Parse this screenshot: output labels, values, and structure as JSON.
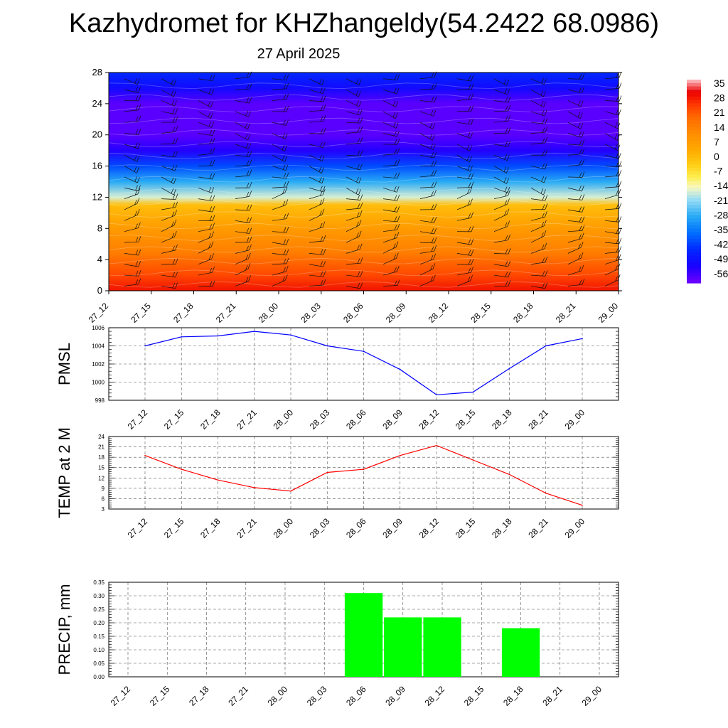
{
  "header": {
    "title": "Kazhydromet for KHZhangeldy(54.2422 68.0986)",
    "subtitle": "27 April 2025"
  },
  "colors": {
    "pmsl_line": "#0000ff",
    "temp_line": "#ff0000",
    "precip_bar": "#00ff00",
    "grid": "#555555"
  },
  "chart_data": [
    {
      "id": "cross-section",
      "type": "heatmap",
      "x_categories": [
        "27_12",
        "27_15",
        "27_18",
        "27_21",
        "28_00",
        "28_03",
        "28_06",
        "28_09",
        "28_12",
        "28_15",
        "28_18",
        "28_21",
        "29_00"
      ],
      "yticks": [
        "0",
        "4",
        "8",
        "12",
        "16",
        "20",
        "24",
        "28"
      ],
      "ylim": [
        0,
        28
      ],
      "colorbar_labels": [
        "35",
        "28",
        "21",
        "14",
        "7",
        "0",
        "-7",
        "-14",
        "-21",
        "-28",
        "-35",
        "-42",
        "-49",
        "-56"
      ],
      "colorbar_range": [
        -60,
        38
      ],
      "bands": [
        {
          "y": 0,
          "value": 30
        },
        {
          "y": 2,
          "value": 24
        },
        {
          "y": 5,
          "value": 15
        },
        {
          "y": 8,
          "value": 8
        },
        {
          "y": 11,
          "value": 0
        },
        {
          "y": 12,
          "value": -16
        },
        {
          "y": 14,
          "value": -28
        },
        {
          "y": 16,
          "value": -40
        },
        {
          "y": 18,
          "value": -53
        },
        {
          "y": 20,
          "value": -58
        },
        {
          "y": 24,
          "value": -58
        },
        {
          "y": 26,
          "value": -50
        },
        {
          "y": 28,
          "value": -44
        }
      ],
      "grid": false
    },
    {
      "id": "pmsl",
      "type": "line",
      "ylabel": "PMSL",
      "categories": [
        "27_12",
        "27_15",
        "27_18",
        "27_21",
        "28_00",
        "28_03",
        "28_06",
        "28_09",
        "28_12",
        "28_15",
        "28_18",
        "28_21",
        "29_00"
      ],
      "values": [
        1004.0,
        1005.0,
        1005.1,
        1005.6,
        1005.2,
        1004.0,
        1003.4,
        1001.4,
        998.6,
        998.9,
        1001.5,
        1004.0,
        1004.8
      ],
      "ylim": [
        998,
        1006
      ],
      "yticks": [
        "998",
        "1000",
        "1002",
        "1004",
        "1006"
      ],
      "grid": true
    },
    {
      "id": "temp",
      "type": "line",
      "ylabel": "TEMP at 2 M",
      "categories": [
        "27_12",
        "27_15",
        "27_18",
        "27_21",
        "28_00",
        "28_03",
        "28_06",
        "28_09",
        "28_12",
        "28_15",
        "28_18",
        "28_21",
        "29_00"
      ],
      "values": [
        18.5,
        14.5,
        11.4,
        9.2,
        8.2,
        13.6,
        14.5,
        18.5,
        21.4,
        17.2,
        13.0,
        7.6,
        4.1
      ],
      "ylim": [
        3,
        24
      ],
      "yticks": [
        "3",
        "6",
        "9",
        "12",
        "15",
        "18",
        "21",
        "24"
      ],
      "grid": true
    },
    {
      "id": "precip",
      "type": "bar",
      "ylabel": "PRECIP, mm",
      "categories": [
        "27_12",
        "27_15",
        "27_18",
        "27_21",
        "28_00",
        "28_03",
        "28_06",
        "28_09",
        "28_12",
        "28_15",
        "28_18",
        "28_21",
        "29_00"
      ],
      "values": [
        0,
        0,
        0,
        0,
        0,
        0,
        0.31,
        0.22,
        0.22,
        0,
        0.18,
        0,
        0
      ],
      "ylim": [
        0,
        0.35
      ],
      "yticks": [
        "0.00",
        "0.05",
        "0.10",
        "0.15",
        "0.20",
        "0.25",
        "0.30",
        "0.35"
      ],
      "grid": true
    }
  ]
}
